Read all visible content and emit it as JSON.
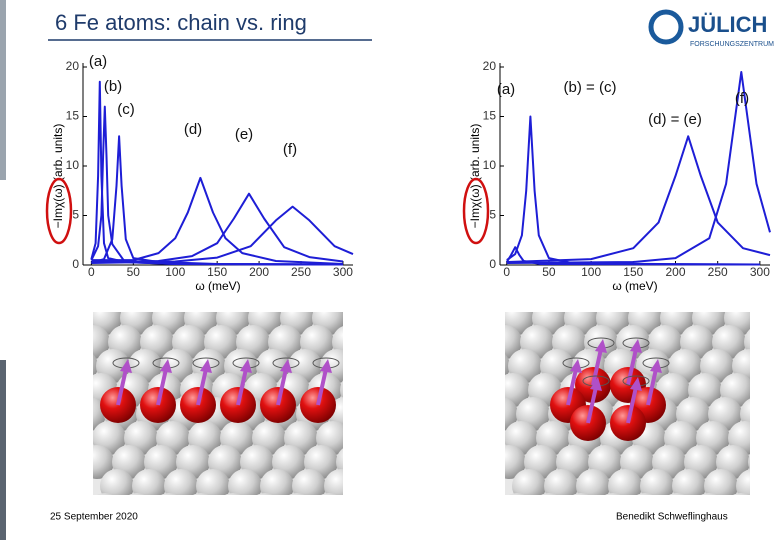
{
  "header": {
    "title": "6 Fe atoms: chain vs. ring",
    "logo": "JÜLICH",
    "logo_sub": "FORSCHUNGSZENTRUM"
  },
  "footer": {
    "date": "25 September 2020",
    "author": "Benedikt Schweflinghaus"
  },
  "chart_data": [
    {
      "type": "line",
      "x_label": "ω (meV)",
      "y_label": "−Imχ(ω) (arb. units)",
      "xlim": [
        -10,
        312
      ],
      "ylim": [
        0,
        20
      ],
      "xticks": [
        0,
        50,
        100,
        150,
        200,
        250,
        300
      ],
      "yticks": [
        0,
        5,
        10,
        15,
        20
      ],
      "series": [
        {
          "name": "(a)",
          "color": "#1e1ed6",
          "x": [
            0,
            5,
            8,
            10,
            12,
            15,
            20,
            40,
            100,
            300
          ],
          "values": [
            0.6,
            2.2,
            9,
            18.5,
            9,
            2.2,
            0.7,
            0.3,
            0.1,
            0.05
          ]
        },
        {
          "name": "(b)",
          "color": "#1e1ed6",
          "x": [
            0,
            8,
            12,
            14,
            16,
            18,
            20,
            25,
            40,
            100,
            300
          ],
          "values": [
            0.5,
            1.9,
            5,
            11,
            16,
            11,
            5,
            2.1,
            0.3,
            0.1,
            0.05
          ]
        },
        {
          "name": "(c)",
          "color": "#1e1ed6",
          "x": [
            0,
            15,
            25,
            30,
            33,
            36,
            41,
            50,
            80,
            150,
            300
          ],
          "values": [
            0.2,
            0.6,
            2.6,
            8,
            13,
            8,
            2.6,
            0.7,
            0.3,
            0.1,
            0.05
          ]
        },
        {
          "name": "(d)",
          "color": "#1e1ed6",
          "x": [
            0,
            50,
            80,
            100,
            115,
            130,
            145,
            160,
            180,
            220,
            300
          ],
          "values": [
            0.5,
            0.5,
            1.2,
            2.7,
            5.3,
            8.8,
            5.3,
            2.7,
            1.2,
            0.4,
            0.1
          ]
        },
        {
          "name": "(e)",
          "color": "#1e1ed6",
          "x": [
            0,
            80,
            120,
            150,
            170,
            188,
            206,
            230,
            260,
            300
          ],
          "values": [
            0.3,
            0.4,
            0.9,
            2.2,
            4.7,
            7.2,
            4.7,
            1.8,
            0.8,
            0.35
          ]
        },
        {
          "name": "(f)",
          "color": "#1e1ed6",
          "x": [
            0,
            100,
            150,
            190,
            220,
            240,
            260,
            290,
            312
          ],
          "values": [
            0.2,
            0.35,
            0.75,
            1.9,
            4.5,
            5.9,
            4.5,
            1.9,
            1.1
          ]
        }
      ]
    },
    {
      "type": "line",
      "x_label": "ω (meV)",
      "y_label": "−Imχ(ω) (arb. units)",
      "xlim": [
        -8,
        312
      ],
      "ylim": [
        0,
        20
      ],
      "xticks": [
        0,
        50,
        100,
        150,
        200,
        250,
        300
      ],
      "yticks": [
        0,
        5,
        10,
        15,
        20
      ],
      "series": [
        {
          "name": "(a)",
          "color": "#1e1ed6",
          "x": [
            0,
            5,
            10,
            15,
            20,
            40,
            300
          ],
          "values": [
            0.3,
            1,
            1.8,
            1,
            0.4,
            0.1,
            0.05
          ]
        },
        {
          "name": "(b) = (c)",
          "color": "#1e1ed6",
          "x": [
            0,
            10,
            18,
            23,
            28,
            33,
            38,
            50,
            80,
            300
          ],
          "values": [
            0.5,
            1.1,
            3,
            7.5,
            15,
            7.5,
            3,
            0.7,
            0.15,
            0.05
          ]
        },
        {
          "name": "(d) = (e)",
          "color": "#1e1ed6",
          "x": [
            0,
            100,
            150,
            180,
            200,
            215,
            230,
            250,
            280,
            312
          ],
          "values": [
            0.3,
            0.6,
            1.7,
            4.3,
            9,
            13,
            9,
            4.3,
            1.7,
            1.0
          ]
        },
        {
          "name": "(f)",
          "color": "#1e1ed6",
          "x": [
            0,
            150,
            200,
            240,
            260,
            278,
            296,
            312
          ],
          "values": [
            0.2,
            0.3,
            0.7,
            2.7,
            8.2,
            19.5,
            8.2,
            3.3
          ]
        }
      ]
    }
  ]
}
